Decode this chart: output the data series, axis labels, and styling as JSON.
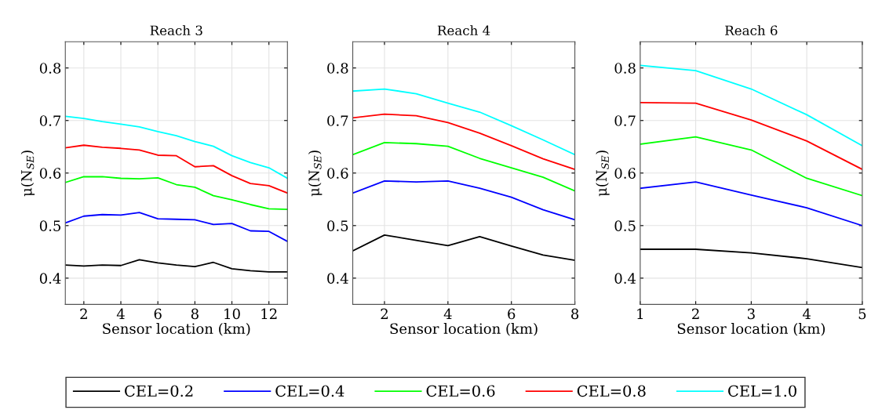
{
  "chart_data": [
    {
      "type": "line",
      "title": "Reach 3",
      "xlabel": "Sensor location (km)",
      "ylabel": "μ(N$_{SE}$)",
      "x": [
        1,
        2,
        3,
        4,
        5,
        6,
        7,
        8,
        9,
        10,
        11,
        12,
        13
      ],
      "xlim": [
        1,
        13
      ],
      "xticks": [
        2,
        4,
        6,
        8,
        10,
        12
      ],
      "ylim": [
        0.35,
        0.85
      ],
      "yticks": [
        0.4,
        0.5,
        0.6,
        0.7,
        0.8
      ],
      "grid": true,
      "legend": "bottom",
      "line_style": "solid",
      "series": [
        {
          "name": "CEL=0.2",
          "color": "#000000",
          "values": [
            0.425,
            0.423,
            0.425,
            0.424,
            0.435,
            0.429,
            0.425,
            0.422,
            0.43,
            0.418,
            0.414,
            0.412,
            0.412
          ]
        },
        {
          "name": "CEL=0.4",
          "color": "#0000ff",
          "values": [
            0.505,
            0.518,
            0.521,
            0.52,
            0.525,
            0.513,
            0.512,
            0.511,
            0.502,
            0.504,
            0.49,
            0.489,
            0.47
          ]
        },
        {
          "name": "CEL=0.6",
          "color": "#00ff00",
          "values": [
            0.582,
            0.593,
            0.593,
            0.59,
            0.589,
            0.591,
            0.578,
            0.573,
            0.557,
            0.549,
            0.54,
            0.532,
            0.531
          ]
        },
        {
          "name": "CEL=0.8",
          "color": "#ff0000",
          "values": [
            0.648,
            0.653,
            0.649,
            0.647,
            0.644,
            0.634,
            0.633,
            0.612,
            0.614,
            0.595,
            0.58,
            0.576,
            0.562
          ]
        },
        {
          "name": "CEL=1.0",
          "color": "#00ffff",
          "values": [
            0.708,
            0.704,
            0.698,
            0.693,
            0.688,
            0.679,
            0.671,
            0.66,
            0.651,
            0.633,
            0.62,
            0.61,
            0.59
          ]
        }
      ]
    },
    {
      "type": "line",
      "title": "Reach 4",
      "xlabel": "Sensor location (km)",
      "ylabel": "μ(N$_{SE}$)",
      "x": [
        1,
        2,
        3,
        4,
        5,
        6,
        7,
        8
      ],
      "xlim": [
        1,
        8
      ],
      "xticks": [
        2,
        4,
        6,
        8
      ],
      "ylim": [
        0.35,
        0.85
      ],
      "yticks": [
        0.4,
        0.5,
        0.6,
        0.7,
        0.8
      ],
      "grid": true,
      "line_style": "solid",
      "series": [
        {
          "color": "#000000",
          "values": [
            0.452,
            0.482,
            0.472,
            0.462,
            0.479,
            0.461,
            0.444,
            0.434
          ]
        },
        {
          "color": "#0000ff",
          "values": [
            0.562,
            0.585,
            0.583,
            0.585,
            0.571,
            0.554,
            0.53,
            0.511
          ]
        },
        {
          "color": "#00ff00",
          "values": [
            0.635,
            0.658,
            0.656,
            0.651,
            0.628,
            0.61,
            0.592,
            0.566
          ]
        },
        {
          "color": "#ff0000",
          "values": [
            0.705,
            0.712,
            0.709,
            0.696,
            0.676,
            0.652,
            0.627,
            0.607
          ]
        },
        {
          "color": "#00ffff",
          "values": [
            0.756,
            0.76,
            0.751,
            0.733,
            0.716,
            0.69,
            0.663,
            0.635
          ]
        }
      ]
    },
    {
      "type": "line",
      "title": "Reach 6",
      "xlabel": "Sensor location (km)",
      "ylabel": "μ(N$_{SE}$)",
      "x": [
        1,
        2,
        3,
        4,
        5
      ],
      "xlim": [
        1,
        5
      ],
      "xticks": [
        1,
        2,
        3,
        4,
        5
      ],
      "ylim": [
        0.35,
        0.85
      ],
      "yticks": [
        0.4,
        0.5,
        0.6,
        0.7,
        0.8
      ],
      "grid": true,
      "line_style": "solid",
      "series": [
        {
          "color": "#000000",
          "values": [
            0.455,
            0.455,
            0.448,
            0.437,
            0.42
          ]
        },
        {
          "color": "#0000ff",
          "values": [
            0.571,
            0.583,
            0.558,
            0.534,
            0.5
          ]
        },
        {
          "color": "#00ff00",
          "values": [
            0.655,
            0.669,
            0.644,
            0.59,
            0.557
          ]
        },
        {
          "color": "#ff0000",
          "values": [
            0.734,
            0.733,
            0.701,
            0.661,
            0.607
          ]
        },
        {
          "color": "#00ffff",
          "values": [
            0.805,
            0.795,
            0.76,
            0.711,
            0.652
          ]
        }
      ]
    }
  ]
}
